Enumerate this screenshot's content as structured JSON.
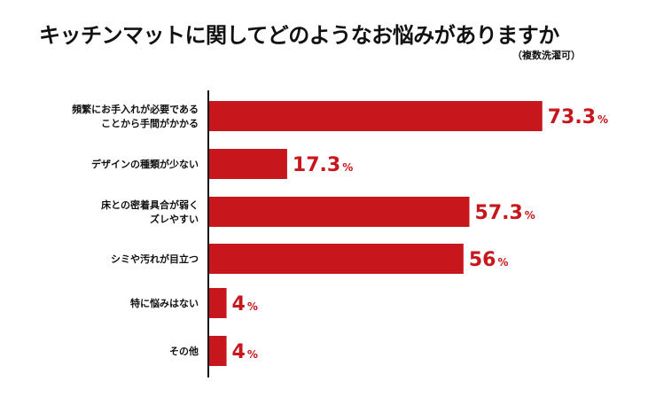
{
  "title": "キッチンマットに関してどのようなお悩みがありますか",
  "subtitle": "（複数洗濯可）",
  "chart_data": {
    "type": "bar",
    "orientation": "horizontal",
    "title": "キッチンマットに関してどのようなお悩みがありますか",
    "subtitle": "（複数洗濯可）",
    "categories": [
      [
        "頻繁にお手入れが必要である",
        "ことから手間がかかる"
      ],
      [
        "デザインの種類が少ない"
      ],
      [
        "床との密着具合が弱く",
        "ズレやすい"
      ],
      [
        "シミや汚れが目立つ"
      ],
      [
        "特に悩みはない"
      ],
      [
        "その他"
      ]
    ],
    "values": [
      73.3,
      17.3,
      57.3,
      56,
      4,
      4
    ],
    "value_labels": [
      "73.3",
      "17.3",
      "57.3",
      "56",
      "4",
      "4"
    ],
    "unit": "%",
    "xlim": [
      0,
      100
    ],
    "bar_color": "#c8161d",
    "label_color": "#c8161d",
    "axis_color": "#111111",
    "grid": false,
    "legend": "none"
  }
}
